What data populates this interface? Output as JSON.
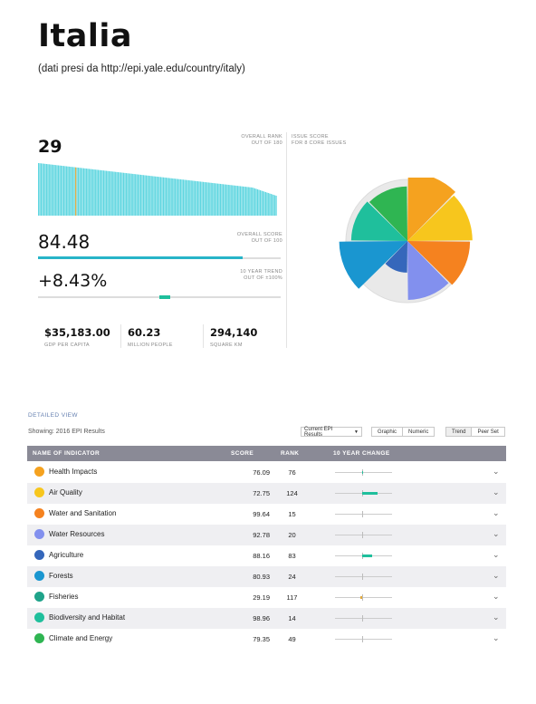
{
  "page": {
    "title": "Italia",
    "subtitle": "(dati presi da http://epi.yale.edu/country/italy)"
  },
  "overview": {
    "rank": {
      "value": "29",
      "label_line1": "OVERALL RANK",
      "label_line2": "OUT OF 180"
    },
    "score": {
      "value": "84.48",
      "label_line1": "OVERALL SCORE",
      "label_line2": "OUT OF 100",
      "fraction": 0.8448
    },
    "trend": {
      "value": "+8.43%",
      "label_line1": "10 YEAR TREND",
      "label_line2": "OUT OF ±100%",
      "fraction": 0.5422
    },
    "issue": {
      "label_line1": "ISSUE SCORE",
      "label_line2": "FOR 8 CORE ISSUES"
    },
    "stats": [
      {
        "value": "$35,183.00",
        "label": "GDP PER CAPITA"
      },
      {
        "value": "60.23",
        "label": "MILLION PEOPLE"
      },
      {
        "value": "294,140",
        "label": "SQUARE KM"
      }
    ],
    "rank_distribution": {
      "count": 180,
      "highlight_rank": 29,
      "bar_color": "#5fd6e0",
      "highlight_color": "#e3a93a"
    },
    "pie_colors": [
      "#1fbf9c",
      "#2fb552",
      "#f5a21f",
      "#f7c61d",
      "#f5821f",
      "#8290ee",
      "#3567bb",
      "#1a96d0"
    ],
    "pie_values": [
      76.09,
      72.75,
      99.64,
      92.78,
      88.16,
      80.93,
      29.19,
      98.96
    ]
  },
  "detailed": {
    "section_label": "DETAILED VIEW",
    "showing": "Showing: 2016 EPI Results",
    "dropdown": "Current EPI Results",
    "view_toggle": [
      "Graphic",
      "Numeric"
    ],
    "mode_toggle": [
      "Trend",
      "Peer Set"
    ],
    "columns": {
      "name": "NAME OF INDICATOR",
      "score": "SCORE",
      "rank": "RANK",
      "change": "10 YEAR CHANGE"
    },
    "rows": [
      {
        "name": "Health Impacts",
        "score": "76.09",
        "rank": "76",
        "change": 2,
        "icon": "person-icon",
        "color": "#f5a21f"
      },
      {
        "name": "Air Quality",
        "score": "72.75",
        "rank": "124",
        "change": 28,
        "icon": "air-icon",
        "color": "#f7c61d"
      },
      {
        "name": "Water and Sanitation",
        "score": "99.64",
        "rank": "15",
        "change": 0,
        "icon": "water-drop-icon",
        "color": "#f5821f"
      },
      {
        "name": "Water Resources",
        "score": "92.78",
        "rank": "20",
        "change": 0,
        "icon": "waves-icon",
        "color": "#8290ee"
      },
      {
        "name": "Agriculture",
        "score": "88.16",
        "rank": "83",
        "change": 18,
        "icon": "bird-icon",
        "color": "#3567bb"
      },
      {
        "name": "Forests",
        "score": "80.93",
        "rank": "24",
        "change": 0,
        "icon": "tree-icon",
        "color": "#1a96d0"
      },
      {
        "name": "Fisheries",
        "score": "29.19",
        "rank": "117",
        "change": -3,
        "icon": "fish-icon",
        "color": "#1fa38a"
      },
      {
        "name": "Biodiversity and Habitat",
        "score": "98.96",
        "rank": "14",
        "change": 0,
        "icon": "butterfly-icon",
        "color": "#1fbf9c"
      },
      {
        "name": "Climate and Energy",
        "score": "79.35",
        "rank": "49",
        "change": 0,
        "icon": "energy-icon",
        "color": "#2fb552"
      }
    ]
  }
}
